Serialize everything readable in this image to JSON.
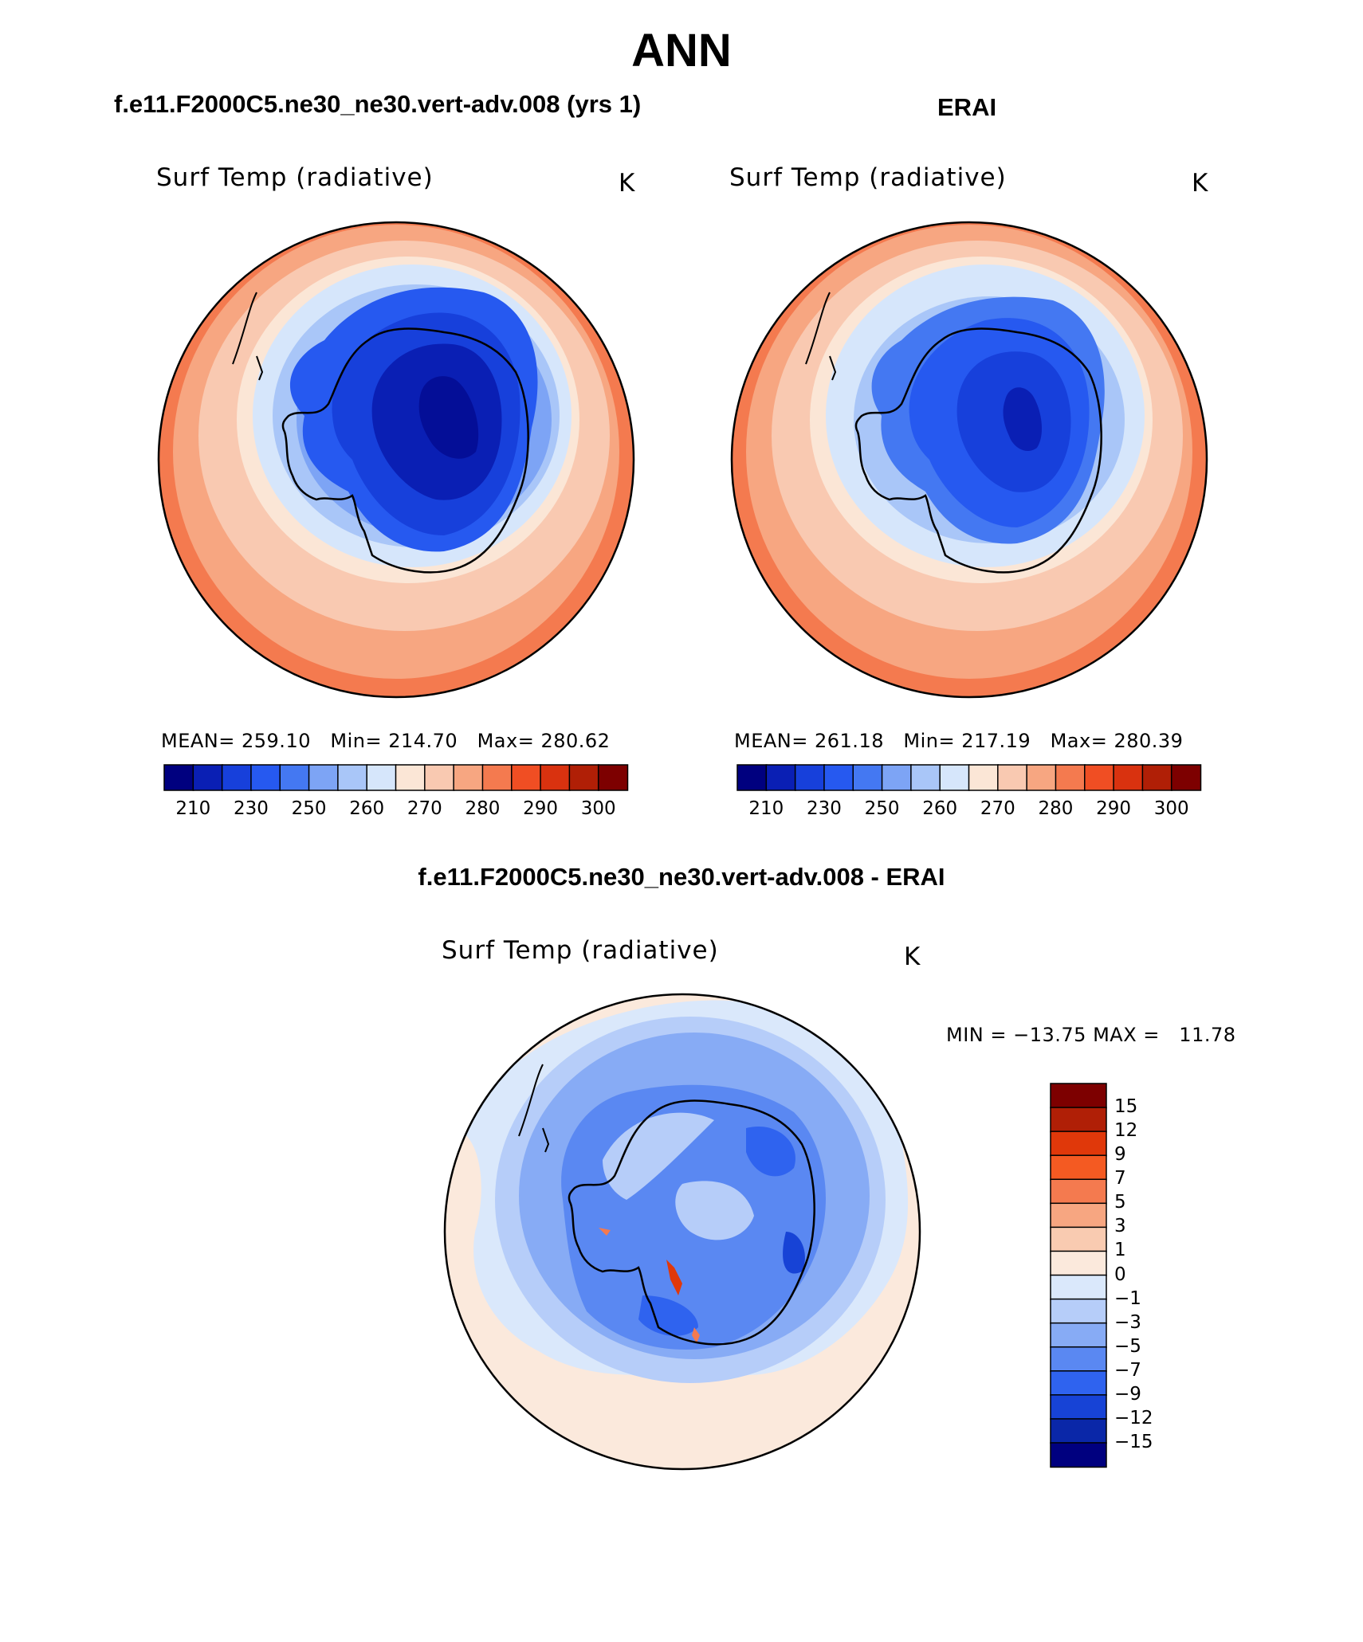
{
  "title": "ANN",
  "panels": [
    {
      "id": "model",
      "case_title": "f.e11.F2000C5.ne30_ne30.vert-adv.008 (yrs 1)",
      "variable": "Surf Temp (radiative)",
      "units": "K",
      "stats": {
        "mean_label": "MEAN=",
        "mean": "259.10",
        "min_label": "Min=",
        "min": "214.70",
        "max_label": "Max=",
        "max": "280.62"
      }
    },
    {
      "id": "obs",
      "case_title": "ERAI",
      "variable": "Surf Temp (radiative)",
      "units": "K",
      "stats": {
        "mean_label": "MEAN=",
        "mean": "261.18",
        "min_label": "Min=",
        "min": "217.19",
        "max_label": "Max=",
        "max": "280.39"
      }
    }
  ],
  "absolute_colorbar": {
    "tick_labels": [
      "210",
      "230",
      "250",
      "260",
      "270",
      "280",
      "290",
      "300"
    ],
    "colors": [
      "#00007f",
      "#0a1fb4",
      "#1740db",
      "#2659f0",
      "#4478f2",
      "#7da4f5",
      "#a9c6f8",
      "#d6e6fb",
      "#fbe6d6",
      "#f9c9b1",
      "#f7a681",
      "#f47a4f",
      "#f04e23",
      "#d9320f",
      "#b01f06",
      "#7d0000"
    ]
  },
  "difference": {
    "title": "f.e11.F2000C5.ne30_ne30.vert-adv.008 - ERAI",
    "variable": "Surf Temp (radiative)",
    "units": "K",
    "min_label": "MIN =",
    "min": "−13.75",
    "max_label": "MAX =",
    "max": "11.78",
    "colorbar": {
      "tick_labels": [
        "15",
        "12",
        "9",
        "7",
        "5",
        "3",
        "1",
        "0",
        "−1",
        "−3",
        "−5",
        "−7",
        "−9",
        "−12",
        "−15"
      ],
      "colors": [
        "#7d0000",
        "#b01f06",
        "#e0380a",
        "#f45a22",
        "#f47a4f",
        "#f7a681",
        "#f9cbb1",
        "#fbe9dc",
        "#dae8fb",
        "#b6cdf9",
        "#87abf5",
        "#5a88f2",
        "#2f63ef",
        "#1743d6",
        "#0a27a8",
        "#00007f"
      ]
    }
  },
  "chart_data": [
    {
      "type": "heatmap",
      "subtype": "polar stereographic map (Southern Hemisphere)",
      "title": "f.e11.F2000C5.ne30_ne30.vert-adv.008 (yrs 1)",
      "variable": "Surf Temp (radiative)",
      "units": "K",
      "mean": 259.1,
      "min": 214.7,
      "max": 280.62,
      "contour_levels": [
        210,
        215,
        220,
        230,
        240,
        250,
        255,
        260,
        265,
        270,
        275,
        280,
        285,
        290,
        295,
        300
      ]
    },
    {
      "type": "heatmap",
      "subtype": "polar stereographic map (Southern Hemisphere)",
      "title": "ERAI",
      "variable": "Surf Temp (radiative)",
      "units": "K",
      "mean": 261.18,
      "min": 217.19,
      "max": 280.39,
      "contour_levels": [
        210,
        215,
        220,
        230,
        240,
        250,
        255,
        260,
        265,
        270,
        275,
        280,
        285,
        290,
        295,
        300
      ]
    },
    {
      "type": "heatmap",
      "subtype": "polar stereographic difference map",
      "title": "f.e11.F2000C5.ne30_ne30.vert-adv.008 - ERAI",
      "variable": "Surf Temp (radiative)",
      "units": "K",
      "min": -13.75,
      "max": 11.78,
      "contour_levels": [
        -15,
        -12,
        -9,
        -7,
        -5,
        -3,
        -1,
        0,
        1,
        3,
        5,
        7,
        9,
        12,
        15
      ]
    }
  ]
}
